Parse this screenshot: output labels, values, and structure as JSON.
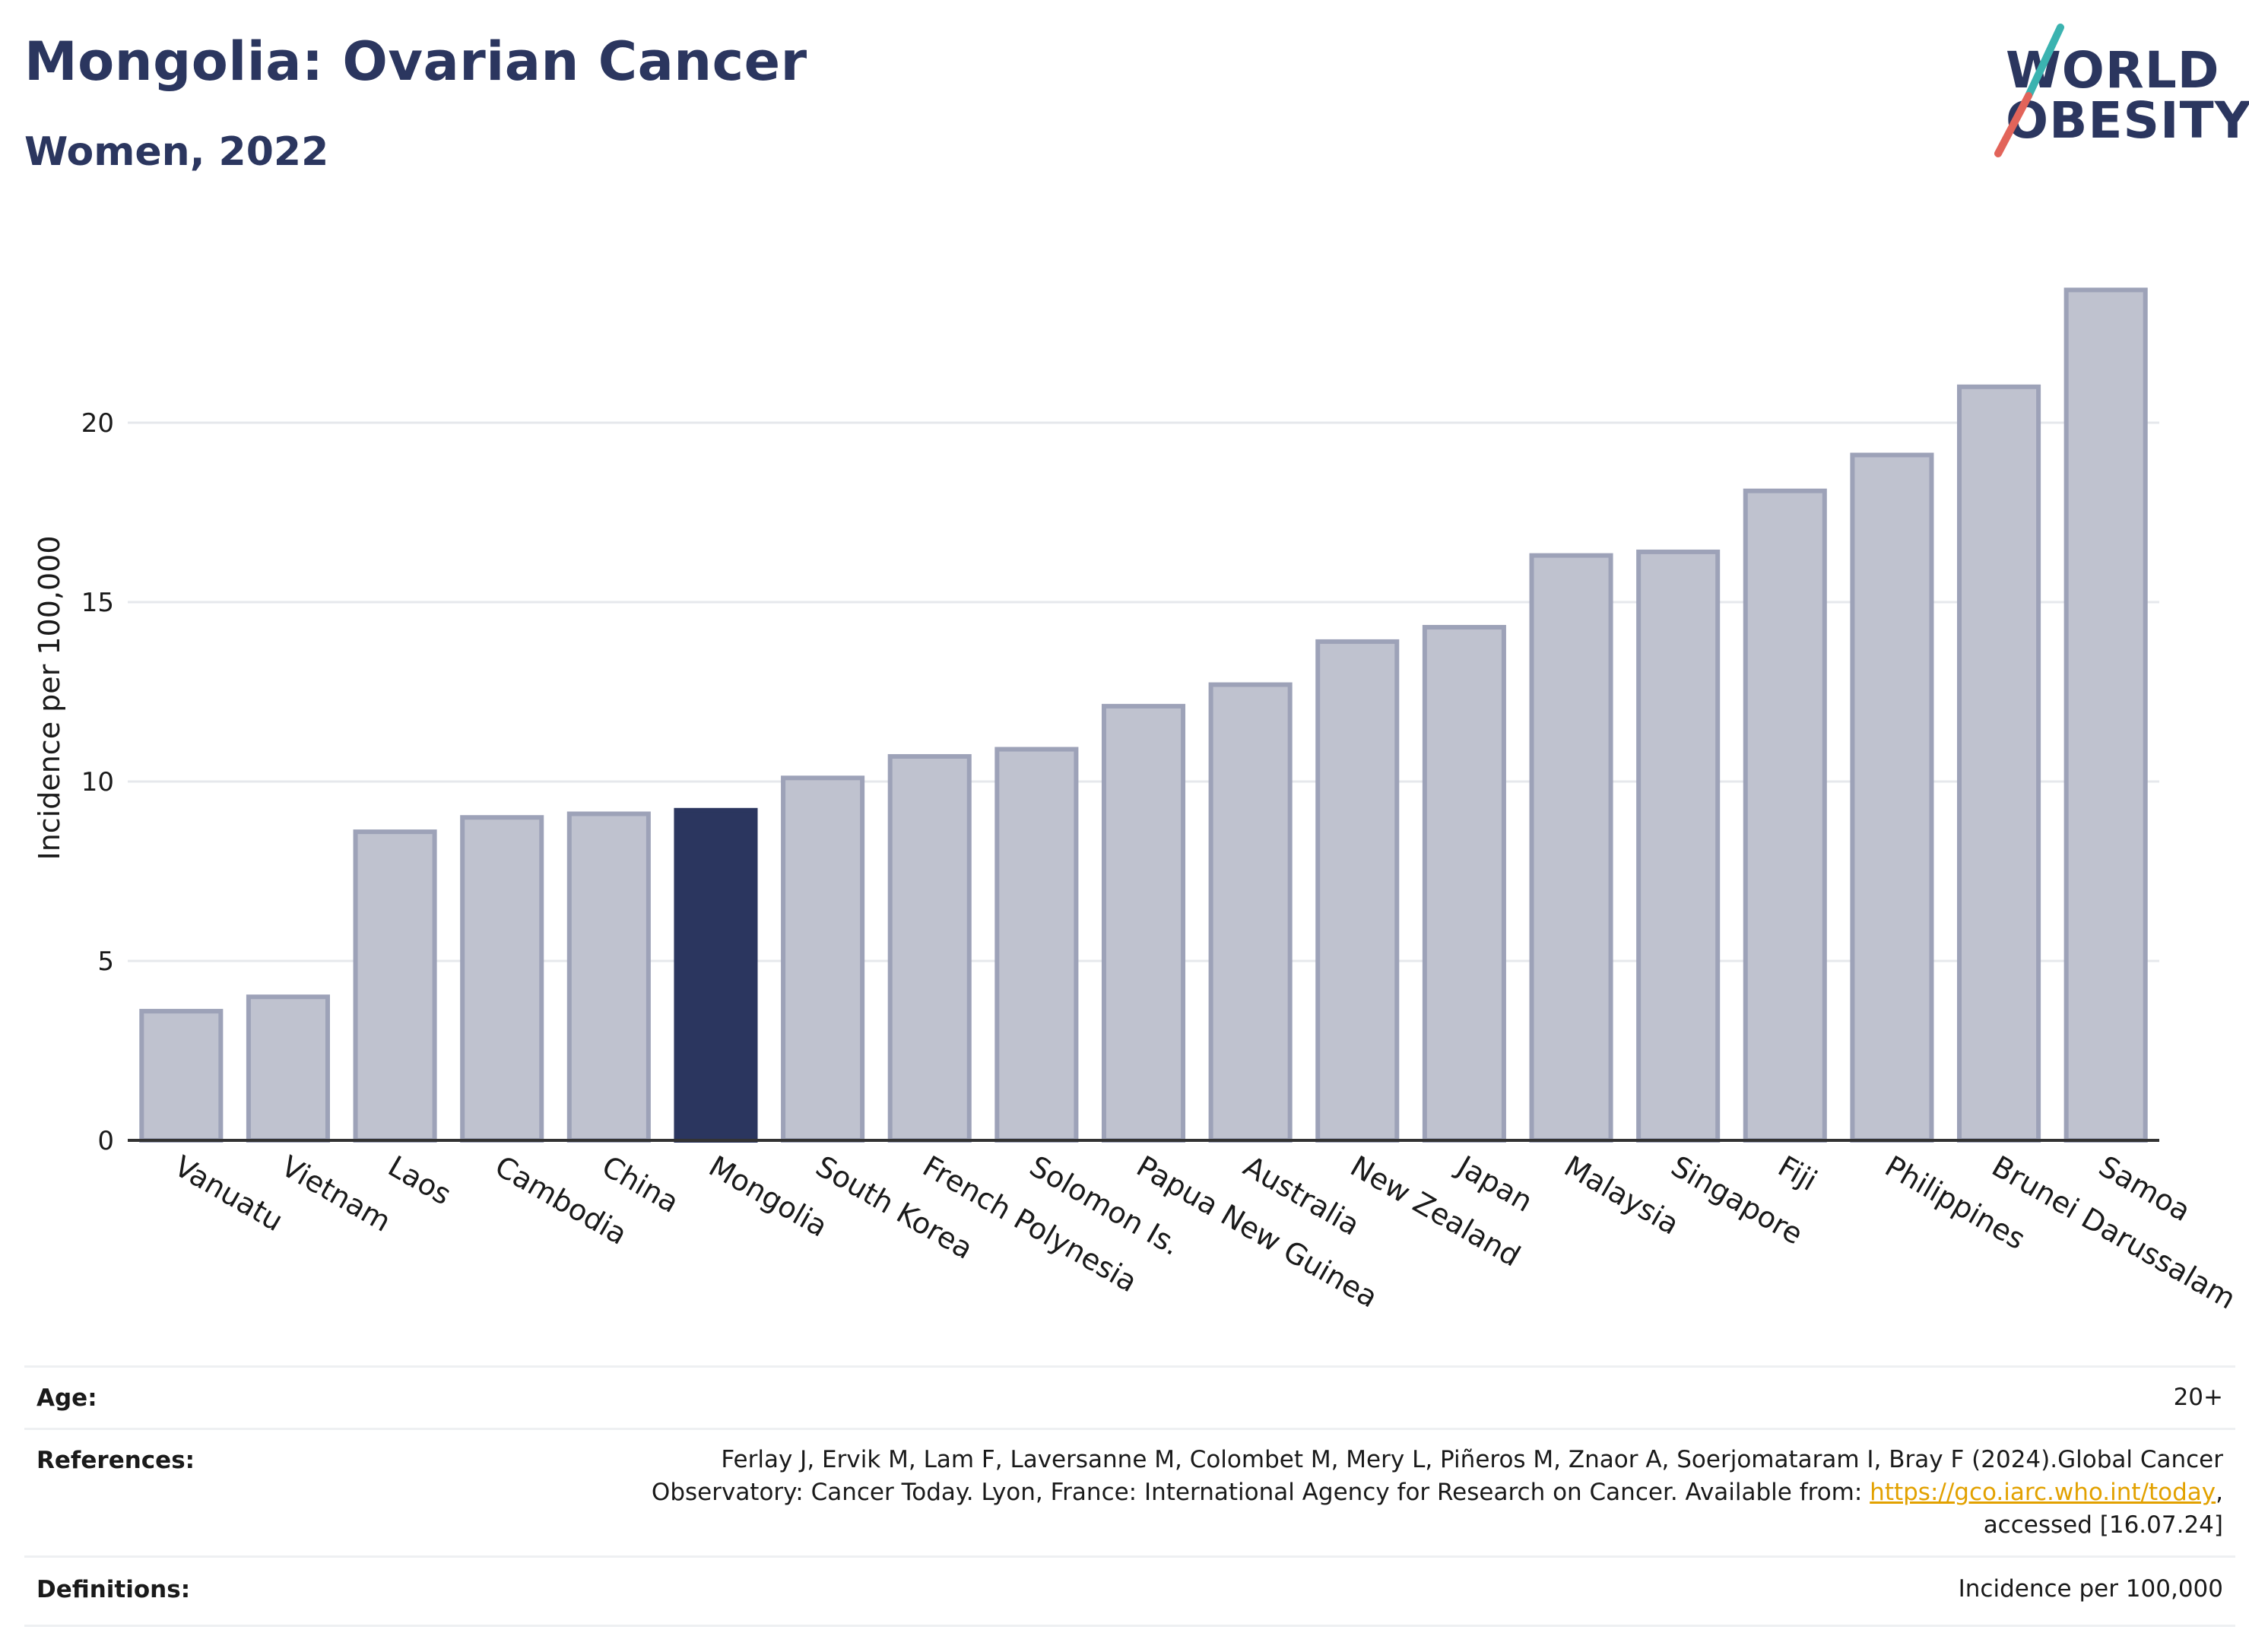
{
  "header": {
    "title": "Mongolia: Ovarian Cancer",
    "subtitle": "Women, 2022"
  },
  "logo": {
    "line1": "WORLD",
    "line2": "OBESITY",
    "colors": {
      "text": "#2b365f",
      "slash_top": "#3bb3b0",
      "slash_bottom": "#e2645a"
    }
  },
  "chart_data": {
    "type": "bar",
    "categories": [
      "Vanuatu",
      "Vietnam",
      "Laos",
      "Cambodia",
      "China",
      "Mongolia",
      "South Korea",
      "French Polynesia",
      "Solomon Is.",
      "Papua New Guinea",
      "Australia",
      "New Zealand",
      "Japan",
      "Malaysia",
      "Singapore",
      "Fiji",
      "Philippines",
      "Brunei Darussalam",
      "Samoa"
    ],
    "values": [
      3.6,
      4.0,
      8.6,
      9.0,
      9.1,
      9.2,
      10.1,
      10.7,
      10.9,
      12.1,
      12.7,
      13.9,
      14.3,
      16.3,
      16.4,
      18.1,
      19.1,
      21.0,
      23.7
    ],
    "highlight": "Mongolia",
    "ylabel": "Incidence per 100,000",
    "xlabel": "",
    "ylim": [
      0,
      25
    ],
    "yticks": [
      0,
      5,
      10,
      15,
      20
    ],
    "grid": true,
    "colors": {
      "bar": "#bfc2cf",
      "bar_border": "#9da2b8",
      "highlight": "#2b365f",
      "grid": "#e6e8ec",
      "axis": "#333333"
    }
  },
  "info": {
    "age_label": "Age:",
    "age_value": "20+",
    "references_label": "References:",
    "references_line1": "Ferlay J, Ervik M, Lam F, Laversanne M, Colombet M, Mery L, Piñeros M, Znaor A, Soerjomataram I, Bray F (2024).Global Cancer",
    "references_line2_pre": "Observatory: Cancer Today. Lyon, France: International Agency for Research on Cancer. Available from: ",
    "references_link": "https://gco.iarc.who.int/today",
    "references_line2_post": ",",
    "references_line3": "accessed [16.07.24]",
    "definitions_label": "Definitions:",
    "definitions_value": "Incidence per 100,000"
  }
}
